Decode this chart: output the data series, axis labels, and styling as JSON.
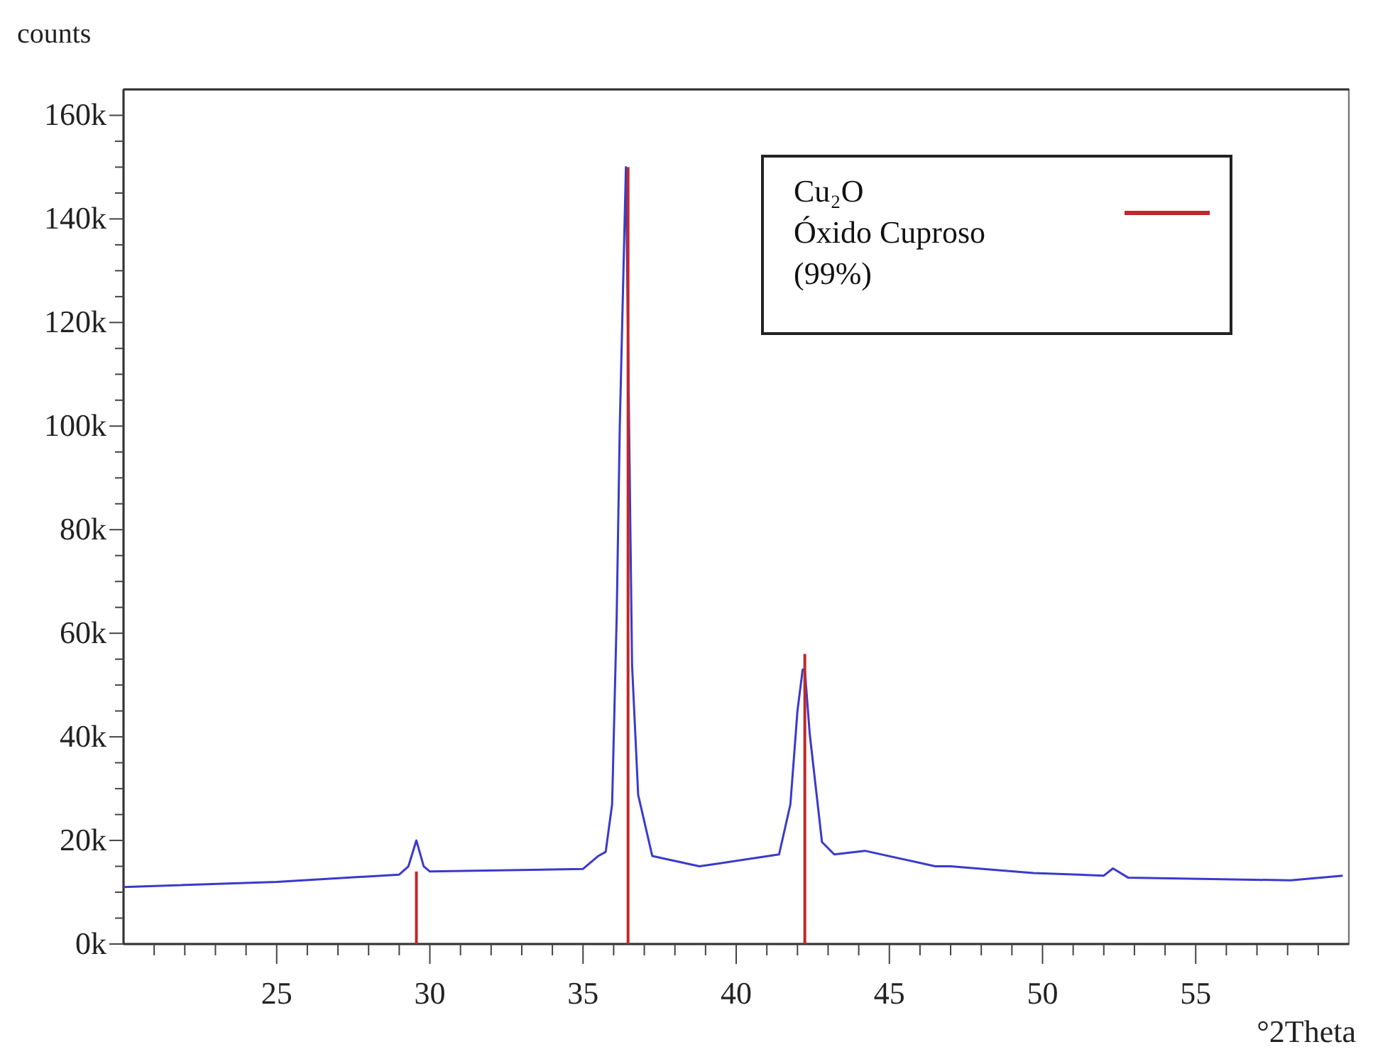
{
  "chart_data": {
    "type": "line",
    "ylabel": "counts",
    "xlabel": "°2Theta",
    "xlim": [
      20,
      60
    ],
    "ylim": [
      0,
      165000
    ],
    "xticks": [
      {
        "value": 21,
        "label": null
      },
      {
        "value": 22,
        "label": null
      },
      {
        "value": 23,
        "label": null
      },
      {
        "value": 24,
        "label": null
      },
      25,
      {
        "value": 26,
        "label": null
      },
      {
        "value": 27,
        "label": null
      },
      {
        "value": 28,
        "label": null
      },
      {
        "value": 29,
        "label": null
      },
      30,
      {
        "value": 31,
        "label": null
      },
      {
        "value": 32,
        "label": null
      },
      {
        "value": 33,
        "label": null
      },
      {
        "value": 34,
        "label": null
      },
      35,
      {
        "value": 36,
        "label": null
      },
      {
        "value": 37,
        "label": null
      },
      {
        "value": 38,
        "label": null
      },
      {
        "value": 39,
        "label": null
      },
      40,
      {
        "value": 41,
        "label": null
      },
      {
        "value": 42,
        "label": null
      },
      {
        "value": 43,
        "label": null
      },
      {
        "value": 44,
        "label": null
      },
      45,
      {
        "value": 46,
        "label": null
      },
      {
        "value": 47,
        "label": null
      },
      {
        "value": 48,
        "label": null
      },
      {
        "value": 49,
        "label": null
      },
      50,
      {
        "value": 51,
        "label": null
      },
      {
        "value": 52,
        "label": null
      },
      {
        "value": 53,
        "label": null
      },
      {
        "value": 54,
        "label": null
      },
      55,
      {
        "value": 56,
        "label": null
      },
      {
        "value": 57,
        "label": null
      },
      {
        "value": 58,
        "label": null
      },
      {
        "value": 59,
        "label": null
      }
    ],
    "yticks": [
      {
        "value": 0,
        "label": "0k"
      },
      {
        "value": 5000,
        "label": null
      },
      {
        "value": 10000,
        "label": null
      },
      {
        "value": 15000,
        "label": null
      },
      {
        "value": 20000,
        "label": "20k"
      },
      {
        "value": 25000,
        "label": null
      },
      {
        "value": 30000,
        "label": null
      },
      {
        "value": 35000,
        "label": null
      },
      {
        "value": 40000,
        "label": "40k"
      },
      {
        "value": 45000,
        "label": null
      },
      {
        "value": 50000,
        "label": null
      },
      {
        "value": 55000,
        "label": null
      },
      {
        "value": 60000,
        "label": "60k"
      },
      {
        "value": 65000,
        "label": null
      },
      {
        "value": 70000,
        "label": null
      },
      {
        "value": 75000,
        "label": null
      },
      {
        "value": 80000,
        "label": "80k"
      },
      {
        "value": 85000,
        "label": null
      },
      {
        "value": 90000,
        "label": null
      },
      {
        "value": 95000,
        "label": null
      },
      {
        "value": 100000,
        "label": "100k"
      },
      {
        "value": 105000,
        "label": null
      },
      {
        "value": 110000,
        "label": null
      },
      {
        "value": 115000,
        "label": null
      },
      {
        "value": 120000,
        "label": "120k"
      },
      {
        "value": 125000,
        "label": null
      },
      {
        "value": 130000,
        "label": null
      },
      {
        "value": 135000,
        "label": null
      },
      {
        "value": 140000,
        "label": "140k"
      },
      {
        "value": 145000,
        "label": null
      },
      {
        "value": 150000,
        "label": null
      },
      {
        "value": 155000,
        "label": null
      },
      {
        "value": 160000,
        "label": "160k"
      }
    ],
    "grid": false,
    "legend": "top right",
    "marker": "none",
    "line_style": "solid",
    "series": [
      {
        "color": "#3a3acc",
        "x": [
          20,
          25,
          29,
          29.3,
          29.56,
          29.8,
          30,
          35,
          35.5,
          35.74,
          35.95,
          36.1,
          36.2,
          36.4,
          36.6,
          36.8,
          37.26,
          38.8,
          41.4,
          41.77,
          42.0,
          42.17,
          42.24,
          42.4,
          42.8,
          43.2,
          44.2,
          46.5,
          47.0,
          49.7,
          52.0,
          52.3,
          52.8,
          58.1,
          59.8
        ],
        "values": [
          11000,
          12000,
          13400,
          15000,
          20000,
          15000,
          14000,
          14500,
          17000,
          17800,
          27000,
          63500,
          100000,
          150000,
          54000,
          28800,
          17000,
          15000,
          17300,
          27000,
          45000,
          53000,
          53000,
          40600,
          19700,
          17300,
          18000,
          15000,
          15000,
          13700,
          13200,
          14600,
          12800,
          12300,
          13200
        ]
      },
      {
        "type": "bar",
        "name": "Cu₂O\nÓxido Cuproso\n(99%)",
        "color": "#c0282a",
        "x": [
          29.56,
          36.47,
          42.24
        ],
        "values": [
          14000,
          150000,
          56000
        ]
      }
    ]
  }
}
